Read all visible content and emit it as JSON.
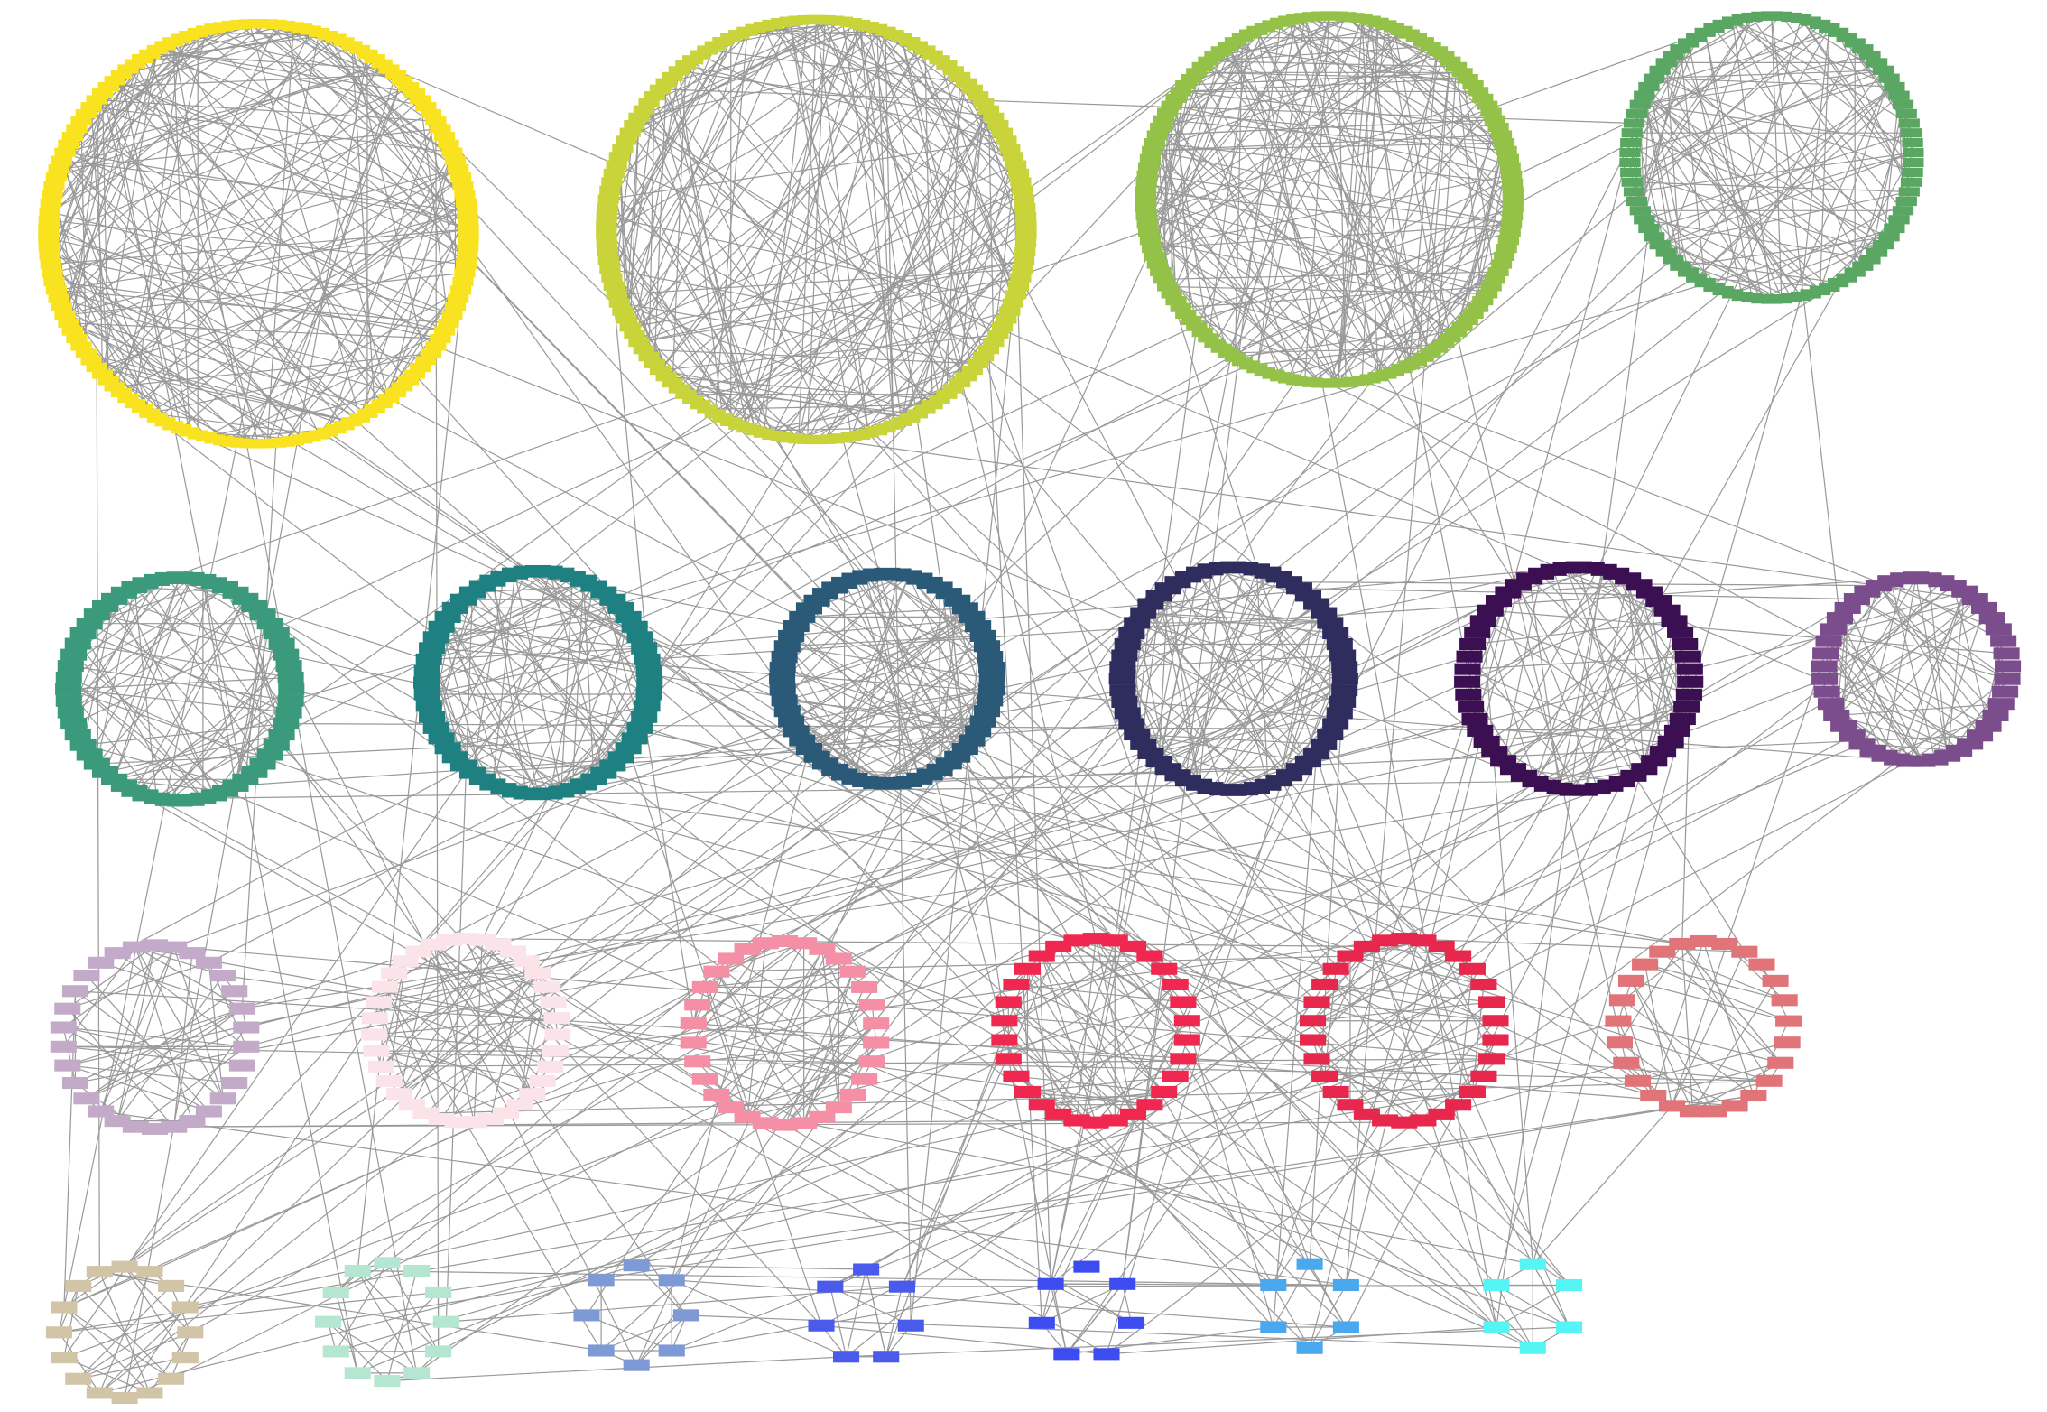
{
  "clusters": [
    {
      "color": "#f9e21f",
      "nodes": 150
    },
    {
      "color": "#c8d43a",
      "nodes": 150
    },
    {
      "color": "#94c248",
      "nodes": 140
    },
    {
      "color": "#5aa763",
      "nodes": 90
    },
    {
      "color": "#3b9a7b",
      "nodes": 60
    },
    {
      "color": "#1f8082",
      "nodes": 60
    },
    {
      "color": "#2a5a78",
      "nodes": 60
    },
    {
      "color": "#2e2d5e",
      "nodes": 60
    },
    {
      "color": "#3b0f52",
      "nodes": 55
    },
    {
      "color": "#7b4d8c",
      "nodes": 45
    },
    {
      "color": "#c3aac8",
      "nodes": 30
    },
    {
      "color": "#fbe3ea",
      "nodes": 35
    },
    {
      "color": "#f58fa6",
      "nodes": 30
    },
    {
      "color": "#f0284f",
      "nodes": 30
    },
    {
      "color": "#e8274c",
      "nodes": 30
    },
    {
      "color": "#e07478",
      "nodes": 25
    },
    {
      "color": "#d2c4a6",
      "nodes": 16
    },
    {
      "color": "#b5e6d2",
      "nodes": 12
    },
    {
      "color": "#7e9ad6",
      "nodes": 8
    },
    {
      "color": "#4a5aeb",
      "nodes": 7
    },
    {
      "color": "#3d4cf0",
      "nodes": 7
    },
    {
      "color": "#4aa8ee",
      "nodes": 6
    },
    {
      "color": "#55f5f5",
      "nodes": 6
    }
  ]
}
